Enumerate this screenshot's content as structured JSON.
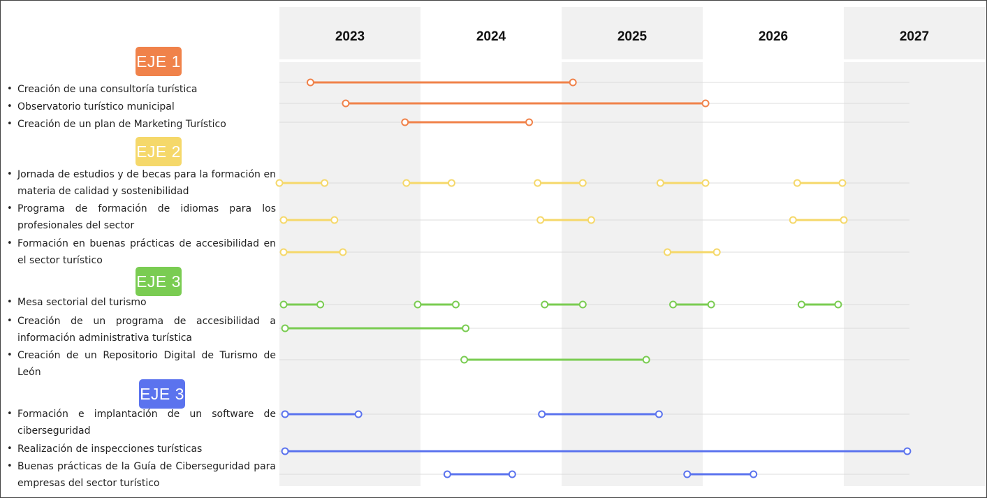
{
  "chart_data": {
    "type": "gantt",
    "years": [
      "2023",
      "2024",
      "2025",
      "2026",
      "2027"
    ],
    "colors": {
      "eje1": "#f0824a",
      "eje2": "#f5d86a",
      "eje3": "#7acc52",
      "eje4": "#5b73ee",
      "shade": "#f1f1f1",
      "gridline": "#dcdcdc"
    },
    "groups": [
      {
        "label": "EJE 1",
        "color": "#f0824a",
        "tasks": [
          {
            "name": "Creación de una consultoría turística",
            "bars": [
              [
                2023.22,
                2025.08
              ]
            ]
          },
          {
            "name": "Observatorio turístico municipal",
            "bars": [
              [
                2023.47,
                2026.02
              ]
            ]
          },
          {
            "name": "Creación de un plan de Marketing Turístico",
            "bars": [
              [
                2023.89,
                2024.77
              ]
            ]
          }
        ]
      },
      {
        "label": "EJE 2",
        "color": "#f5d86a",
        "tasks": [
          {
            "name": "Jornada de estudios y de becas para la formación en materia de calidad y sostenibilidad",
            "bars": [
              [
                2023.0,
                2023.32
              ],
              [
                2023.9,
                2024.22
              ],
              [
                2024.83,
                2025.15
              ],
              [
                2025.7,
                2026.02
              ],
              [
                2026.67,
                2026.99
              ]
            ]
          },
          {
            "name": "Programa de formación de idiomas para los profesionales del sector",
            "bars": [
              [
                2023.03,
                2023.39
              ],
              [
                2024.85,
                2025.21
              ],
              [
                2026.64,
                2027.0
              ]
            ]
          },
          {
            "name": "Formación en buenas prácticas de accesibilidad en el sector turístico",
            "bars": [
              [
                2023.03,
                2023.45
              ],
              [
                2025.75,
                2026.1
              ]
            ]
          }
        ]
      },
      {
        "label": "EJE 3",
        "color": "#7acc52",
        "tasks": [
          {
            "name": "Mesa sectorial del turismo",
            "bars": [
              [
                2023.03,
                2023.29
              ],
              [
                2023.98,
                2024.25
              ],
              [
                2024.88,
                2025.15
              ],
              [
                2025.79,
                2026.06
              ],
              [
                2026.7,
                2026.96
              ]
            ]
          },
          {
            "name": "Creación de un programa de accesibilidad a información administrativa turística",
            "bars": [
              [
                2023.04,
                2024.32
              ]
            ]
          },
          {
            "name": "Creación de un Repositorio Digital de Turismo de León",
            "bars": [
              [
                2024.31,
                2025.6
              ]
            ]
          }
        ]
      },
      {
        "label": "EJE 3",
        "color": "#5b73ee",
        "tasks": [
          {
            "name": "Formación e implantación de un software de ciberseguridad",
            "bars": [
              [
                2023.04,
                2023.56
              ],
              [
                2024.86,
                2025.69
              ]
            ]
          },
          {
            "name": "Realización de inspecciones turísticas",
            "bars": [
              [
                2023.04,
                2027.45
              ]
            ]
          },
          {
            "name": "Buenas prácticas de la Guía de Ciberseguridad para empresas del sector turístico",
            "bars": [
              [
                2024.19,
                2024.65
              ],
              [
                2025.89,
                2026.36
              ]
            ]
          }
        ]
      }
    ]
  }
}
